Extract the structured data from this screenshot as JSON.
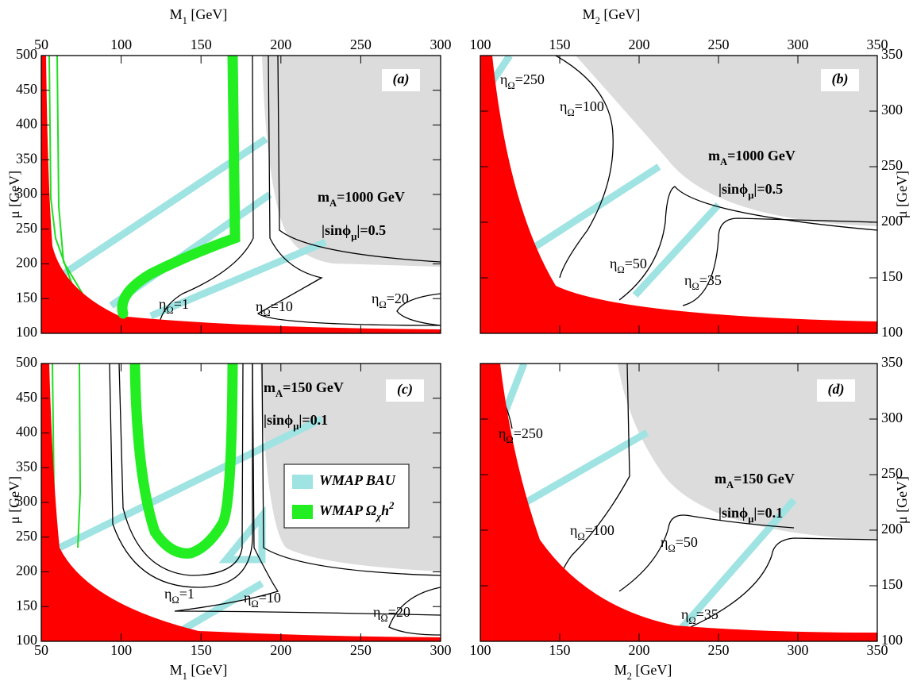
{
  "chart_data": [
    {
      "type": "contour",
      "panel_label": "(a)",
      "x_label": [
        {
          "text": "M"
        },
        {
          "text": "1",
          "pos": "sub"
        },
        {
          "text": "  [GeV]"
        }
      ],
      "y_label": [
        {
          "text": "μ  [GeV]"
        }
      ],
      "xlim": [
        50,
        300
      ],
      "xticks": [
        50,
        100,
        150,
        200,
        250,
        300
      ],
      "ylim": [
        100,
        500
      ],
      "yticks": [
        100,
        150,
        200,
        250,
        300,
        350,
        400,
        450,
        500
      ],
      "annotations": [
        {
          "parts": [
            {
              "text": "m"
            },
            {
              "text": "A",
              "pos": "sub"
            },
            {
              "text": "=1000 GeV"
            }
          ]
        },
        {
          "parts": [
            {
              "text": "|sinϕ"
            },
            {
              "text": "μ",
              "pos": "sub"
            },
            {
              "text": "|=0.5"
            }
          ]
        },
        {
          "parts": [
            {
              "text": "η"
            },
            {
              "text": "Ω",
              "pos": "sub"
            },
            {
              "text": "=1"
            }
          ]
        },
        {
          "parts": [
            {
              "text": "η"
            },
            {
              "text": "Ω",
              "pos": "sub"
            },
            {
              "text": "=10"
            }
          ]
        },
        {
          "parts": [
            {
              "text": "η"
            },
            {
              "text": "Ω",
              "pos": "sub"
            },
            {
              "text": "=20"
            }
          ]
        }
      ]
    },
    {
      "type": "contour",
      "panel_label": "(b)",
      "x_label": [
        {
          "text": "M"
        },
        {
          "text": "2",
          "pos": "sub"
        },
        {
          "text": "  [GeV]"
        }
      ],
      "y_label": [
        {
          "text": "μ  [GeV]"
        }
      ],
      "xlim": [
        100,
        350
      ],
      "xticks": [
        100,
        150,
        200,
        250,
        300,
        350
      ],
      "ylim": [
        100,
        350
      ],
      "yticks": [
        100,
        150,
        200,
        250,
        300,
        350
      ],
      "annotations": [
        {
          "parts": [
            {
              "text": "m"
            },
            {
              "text": "A",
              "pos": "sub"
            },
            {
              "text": "=1000 GeV"
            }
          ]
        },
        {
          "parts": [
            {
              "text": "|sinϕ"
            },
            {
              "text": "μ",
              "pos": "sub"
            },
            {
              "text": "|=0.5"
            }
          ]
        },
        {
          "parts": [
            {
              "text": "η"
            },
            {
              "text": "Ω",
              "pos": "sub"
            },
            {
              "text": "=250"
            }
          ]
        },
        {
          "parts": [
            {
              "text": "η"
            },
            {
              "text": "Ω",
              "pos": "sub"
            },
            {
              "text": "=100"
            }
          ]
        },
        {
          "parts": [
            {
              "text": "η"
            },
            {
              "text": "Ω",
              "pos": "sub"
            },
            {
              "text": "=50"
            }
          ]
        },
        {
          "parts": [
            {
              "text": "η"
            },
            {
              "text": "Ω",
              "pos": "sub"
            },
            {
              "text": "=35"
            }
          ]
        }
      ]
    },
    {
      "type": "contour",
      "panel_label": "(c)",
      "x_label": [
        {
          "text": "M"
        },
        {
          "text": "1",
          "pos": "sub"
        },
        {
          "text": "  [GeV]"
        }
      ],
      "y_label": [
        {
          "text": "μ  [GeV]"
        }
      ],
      "xlim": [
        50,
        300
      ],
      "xticks": [
        50,
        100,
        150,
        200,
        250,
        300
      ],
      "ylim": [
        100,
        500
      ],
      "yticks": [
        100,
        150,
        200,
        250,
        300,
        350,
        400,
        450,
        500
      ],
      "annotations": [
        {
          "parts": [
            {
              "text": "m"
            },
            {
              "text": "A",
              "pos": "sub"
            },
            {
              "text": "=150 GeV"
            }
          ]
        },
        {
          "parts": [
            {
              "text": "|sinϕ"
            },
            {
              "text": "μ",
              "pos": "sub"
            },
            {
              "text": "|=0.1"
            }
          ]
        },
        {
          "parts": [
            {
              "text": "η"
            },
            {
              "text": "Ω",
              "pos": "sub"
            },
            {
              "text": "=1"
            }
          ]
        },
        {
          "parts": [
            {
              "text": "η"
            },
            {
              "text": "Ω",
              "pos": "sub"
            },
            {
              "text": "=10"
            }
          ]
        },
        {
          "parts": [
            {
              "text": "η"
            },
            {
              "text": "Ω",
              "pos": "sub"
            },
            {
              "text": "=20"
            }
          ]
        }
      ],
      "legend": [
        {
          "parts": [
            {
              "text": "WMAP BAU"
            }
          ],
          "color": "#9fe3e3"
        },
        {
          "parts": [
            {
              "text": "WMAP Ω"
            },
            {
              "text": "χ",
              "pos": "sub"
            },
            {
              "text": "h"
            },
            {
              "text": "2",
              "pos": "sup"
            }
          ],
          "color": "#22ee22"
        }
      ]
    },
    {
      "type": "contour",
      "panel_label": "(d)",
      "x_label": [
        {
          "text": "M"
        },
        {
          "text": "2",
          "pos": "sub"
        },
        {
          "text": "  [GeV]"
        }
      ],
      "y_label": [
        {
          "text": "μ  [GeV]"
        }
      ],
      "xlim": [
        100,
        350
      ],
      "xticks": [
        100,
        150,
        200,
        250,
        300,
        350
      ],
      "ylim": [
        100,
        350
      ],
      "yticks": [
        100,
        150,
        200,
        250,
        300,
        350
      ],
      "annotations": [
        {
          "parts": [
            {
              "text": "m"
            },
            {
              "text": "A",
              "pos": "sub"
            },
            {
              "text": "=150 GeV"
            }
          ]
        },
        {
          "parts": [
            {
              "text": "|sinϕ"
            },
            {
              "text": "μ",
              "pos": "sub"
            },
            {
              "text": "|=0.1"
            }
          ]
        },
        {
          "parts": [
            {
              "text": "η"
            },
            {
              "text": "Ω",
              "pos": "sub"
            },
            {
              "text": "=250"
            }
          ]
        },
        {
          "parts": [
            {
              "text": "η"
            },
            {
              "text": "Ω",
              "pos": "sub"
            },
            {
              "text": "=100"
            }
          ]
        },
        {
          "parts": [
            {
              "text": "η"
            },
            {
              "text": "Ω",
              "pos": "sub"
            },
            {
              "text": "=50"
            }
          ]
        },
        {
          "parts": [
            {
              "text": "η"
            },
            {
              "text": "Ω",
              "pos": "sub"
            },
            {
              "text": "=35"
            }
          ]
        }
      ]
    }
  ]
}
